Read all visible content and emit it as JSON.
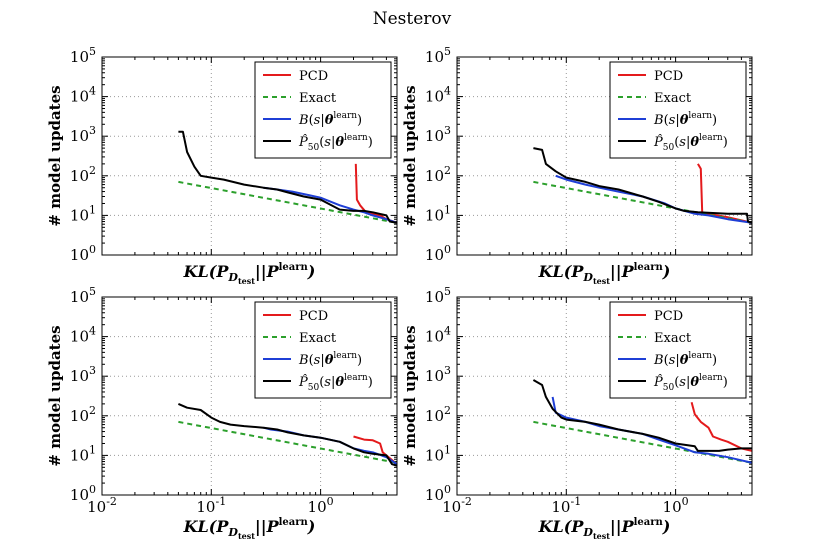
{
  "figure": {
    "title": "Nesterov",
    "colors": {
      "PCD": "#e41a1c",
      "Exact": "#2ca02c",
      "B": "#1f3fd6",
      "P50": "#000000",
      "grid": "#9a9a9a"
    }
  },
  "chart_data": [
    {
      "type": "line",
      "title": "",
      "xlabel": "KL(P_D_test || P^learn)",
      "ylabel": "# model updates",
      "xscale": "log",
      "yscale": "log",
      "xlim": [
        0.01,
        5
      ],
      "ylim": [
        1,
        100000
      ],
      "xticks": [],
      "yticks": [
        "10^0",
        "10^1",
        "10^2",
        "10^3",
        "10^4",
        "10^5"
      ],
      "legend": [
        "PCD",
        "Exact",
        "B(s|θ^learn)",
        "P̂_50(s|θ^learn)"
      ],
      "series": [
        {
          "name": "PCD",
          "points": [
            [
              2.1,
              200
            ],
            [
              2.15,
              25
            ],
            [
              2.3,
              18
            ],
            [
              2.6,
              12
            ],
            [
              3.0,
              11
            ],
            [
              3.5,
              10
            ],
            [
              4.0,
              8
            ],
            [
              5,
              6.5
            ]
          ]
        },
        {
          "name": "Exact",
          "points": [
            [
              0.05,
              70
            ],
            [
              5,
              6.5
            ]
          ]
        },
        {
          "name": "B(s|θ^learn)",
          "points": [
            [
              0.3,
              50
            ],
            [
              0.4,
              45
            ],
            [
              0.55,
              40
            ],
            [
              0.8,
              32
            ],
            [
              1.0,
              28
            ],
            [
              1.5,
              18
            ],
            [
              2.0,
              14
            ],
            [
              2.5,
              12
            ],
            [
              3.0,
              10
            ],
            [
              4.0,
              8
            ],
            [
              5,
              6.5
            ]
          ]
        },
        {
          "name": "P̂_50(s|θ^learn)",
          "points": [
            [
              0.05,
              1300
            ],
            [
              0.055,
              1300
            ],
            [
              0.06,
              400
            ],
            [
              0.07,
              170
            ],
            [
              0.08,
              100
            ],
            [
              0.1,
              90
            ],
            [
              0.13,
              80
            ],
            [
              0.2,
              60
            ],
            [
              0.3,
              50
            ],
            [
              0.4,
              45
            ],
            [
              0.5,
              38
            ],
            [
              0.7,
              30
            ],
            [
              1.0,
              25
            ],
            [
              1.5,
              14
            ],
            [
              2.0,
              13
            ],
            [
              2.5,
              13
            ],
            [
              3.0,
              12
            ],
            [
              4.0,
              10
            ],
            [
              4.3,
              7
            ],
            [
              5,
              6.5
            ]
          ]
        }
      ]
    },
    {
      "type": "line",
      "title": "",
      "xlabel": "KL(P_D_test || P^learn)",
      "ylabel": "# model updates",
      "xscale": "log",
      "yscale": "log",
      "xlim": [
        0.01,
        5
      ],
      "ylim": [
        1,
        100000
      ],
      "xticks": [],
      "yticks": [
        "10^0",
        "10^1",
        "10^2",
        "10^3",
        "10^4",
        "10^5"
      ],
      "legend": [
        "PCD",
        "Exact",
        "B(s|θ^learn)",
        "P̂_50(s|θ^learn)"
      ],
      "series": [
        {
          "name": "PCD",
          "points": [
            [
              1.6,
              200
            ],
            [
              1.7,
              150
            ],
            [
              1.75,
              12
            ],
            [
              2.0,
              11
            ],
            [
              3.0,
              9
            ],
            [
              5,
              6.5
            ]
          ]
        },
        {
          "name": "Exact",
          "points": [
            [
              0.05,
              70
            ],
            [
              5,
              6.5
            ]
          ]
        },
        {
          "name": "B(s|θ^learn)",
          "points": [
            [
              0.08,
              100
            ],
            [
              0.1,
              80
            ],
            [
              0.15,
              60
            ],
            [
              0.2,
              50
            ],
            [
              0.3,
              40
            ],
            [
              0.5,
              30
            ],
            [
              0.8,
              20
            ],
            [
              1.0,
              15
            ],
            [
              1.5,
              11
            ],
            [
              2.0,
              10
            ],
            [
              3.0,
              8
            ],
            [
              5,
              6.5
            ]
          ]
        },
        {
          "name": "P̂_50(s|θ^learn)",
          "points": [
            [
              0.05,
              500
            ],
            [
              0.06,
              450
            ],
            [
              0.065,
              200
            ],
            [
              0.08,
              130
            ],
            [
              0.1,
              90
            ],
            [
              0.15,
              70
            ],
            [
              0.2,
              55
            ],
            [
              0.3,
              45
            ],
            [
              0.5,
              30
            ],
            [
              0.7,
              22
            ],
            [
              1.0,
              15
            ],
            [
              1.2,
              13
            ],
            [
              1.6,
              12
            ],
            [
              3.0,
              11
            ],
            [
              4.5,
              11
            ],
            [
              4.6,
              7
            ],
            [
              5,
              6.5
            ]
          ]
        }
      ]
    },
    {
      "type": "line",
      "title": "",
      "xlabel": "KL(P_D_test || P^learn)",
      "ylabel": "# model updates",
      "xscale": "log",
      "yscale": "log",
      "xlim": [
        0.01,
        5
      ],
      "ylim": [
        1,
        100000
      ],
      "xticks": [
        "10^-2",
        "10^-1",
        "10^0"
      ],
      "yticks": [
        "10^0",
        "10^1",
        "10^2",
        "10^3",
        "10^4",
        "10^5"
      ],
      "legend": [
        "PCD",
        "Exact",
        "B(s|θ^learn)",
        "P̂_50(s|θ^learn)"
      ],
      "series": [
        {
          "name": "PCD",
          "points": [
            [
              2.0,
              30
            ],
            [
              2.5,
              25
            ],
            [
              3.0,
              24
            ],
            [
              3.5,
              20
            ],
            [
              3.7,
              12
            ],
            [
              4.0,
              10
            ],
            [
              5,
              6
            ]
          ]
        },
        {
          "name": "Exact",
          "points": [
            [
              0.05,
              70
            ],
            [
              5,
              6.5
            ]
          ]
        },
        {
          "name": "B(s|θ^learn)",
          "points": [
            [
              0.3,
              50
            ],
            [
              0.35,
              45
            ],
            [
              0.5,
              40
            ],
            [
              0.7,
              32
            ],
            [
              1.0,
              28
            ],
            [
              1.5,
              22
            ],
            [
              2.0,
              15
            ],
            [
              2.5,
              13
            ],
            [
              3.0,
              12
            ],
            [
              4.0,
              9
            ],
            [
              5,
              6
            ]
          ]
        },
        {
          "name": "P̂_50(s|θ^learn)",
          "points": [
            [
              0.05,
              200
            ],
            [
              0.06,
              160
            ],
            [
              0.08,
              140
            ],
            [
              0.1,
              90
            ],
            [
              0.12,
              70
            ],
            [
              0.15,
              60
            ],
            [
              0.2,
              55
            ],
            [
              0.3,
              50
            ],
            [
              0.4,
              45
            ],
            [
              0.5,
              38
            ],
            [
              0.7,
              32
            ],
            [
              1.0,
              28
            ],
            [
              1.5,
              22
            ],
            [
              2.0,
              15
            ],
            [
              2.5,
              12
            ],
            [
              3.0,
              11
            ],
            [
              4.0,
              10
            ],
            [
              4.5,
              6
            ],
            [
              5,
              5.5
            ]
          ]
        }
      ]
    },
    {
      "type": "line",
      "title": "",
      "xlabel": "KL(P_D_test || P^learn)",
      "ylabel": "# model updates",
      "xscale": "log",
      "yscale": "log",
      "xlim": [
        0.01,
        5
      ],
      "ylim": [
        1,
        100000
      ],
      "xticks": [
        "10^-2",
        "10^-1",
        "10^0"
      ],
      "yticks": [
        "10^0",
        "10^1",
        "10^2",
        "10^3",
        "10^4",
        "10^5"
      ],
      "legend": [
        "PCD",
        "Exact",
        "B(s|θ^learn)",
        "P̂_50(s|θ^learn)"
      ],
      "series": [
        {
          "name": "PCD",
          "points": [
            [
              1.4,
              220
            ],
            [
              1.5,
              110
            ],
            [
              1.7,
              70
            ],
            [
              2.0,
              50
            ],
            [
              2.2,
              30
            ],
            [
              2.6,
              25
            ],
            [
              3.0,
              22
            ],
            [
              4.0,
              15
            ],
            [
              5,
              13
            ]
          ]
        },
        {
          "name": "Exact",
          "points": [
            [
              0.05,
              70
            ],
            [
              5,
              6.5
            ]
          ]
        },
        {
          "name": "B(s|θ^learn)",
          "points": [
            [
              0.075,
              300
            ],
            [
              0.08,
              120
            ],
            [
              0.1,
              90
            ],
            [
              0.15,
              70
            ],
            [
              0.2,
              55
            ],
            [
              0.3,
              45
            ],
            [
              0.5,
              35
            ],
            [
              0.7,
              25
            ],
            [
              1.0,
              18
            ],
            [
              1.5,
              12
            ],
            [
              2.0,
              11
            ],
            [
              3.0,
              9
            ],
            [
              5,
              6.5
            ]
          ]
        },
        {
          "name": "P̂_50(s|θ^learn)",
          "points": [
            [
              0.05,
              800
            ],
            [
              0.06,
              600
            ],
            [
              0.065,
              300
            ],
            [
              0.075,
              150
            ],
            [
              0.09,
              90
            ],
            [
              0.1,
              80
            ],
            [
              0.15,
              70
            ],
            [
              0.2,
              60
            ],
            [
              0.3,
              45
            ],
            [
              0.5,
              35
            ],
            [
              0.7,
              28
            ],
            [
              1.0,
              20
            ],
            [
              1.5,
              17
            ],
            [
              1.6,
              13
            ],
            [
              2.5,
              13
            ],
            [
              3.0,
              14
            ],
            [
              4.0,
              15
            ],
            [
              5,
              15
            ]
          ]
        }
      ]
    }
  ]
}
